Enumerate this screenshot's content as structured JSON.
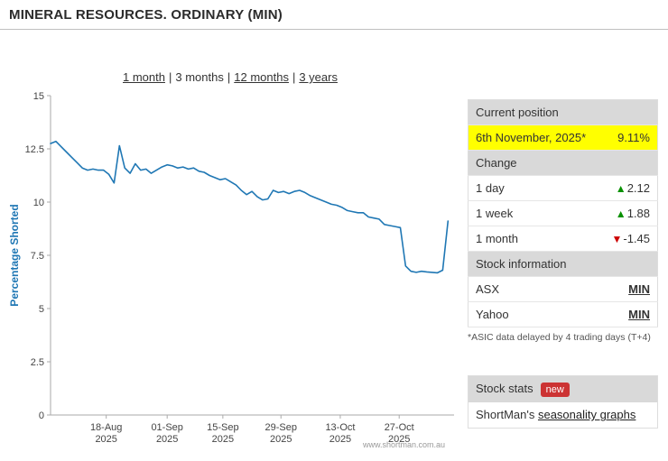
{
  "page": {
    "title": "MINERAL RESOURCES. ORDINARY (MIN)",
    "watermark": "www.shortman.com.au"
  },
  "nav": {
    "separator": "|",
    "items": [
      {
        "label": "1 month",
        "current": false
      },
      {
        "label": "3 months",
        "current": true
      },
      {
        "label": "12 months",
        "current": false
      },
      {
        "label": "3 years",
        "current": false
      }
    ]
  },
  "chart_data": {
    "type": "line",
    "title": "",
    "xlabel": "",
    "ylabel": "Percentage Shorted",
    "ylim": [
      0,
      15
    ],
    "yticks": [
      0,
      2.5,
      5,
      7.5,
      10,
      12.5,
      15
    ],
    "grid": false,
    "legend": "none",
    "x_end_frac": 0.985,
    "xticks": [
      {
        "frac": 0.138,
        "line1": "18-Aug",
        "line2": "2025"
      },
      {
        "frac": 0.289,
        "line1": "01-Sep",
        "line2": "2025"
      },
      {
        "frac": 0.427,
        "line1": "15-Sep",
        "line2": "2025"
      },
      {
        "frac": 0.571,
        "line1": "29-Sep",
        "line2": "2025"
      },
      {
        "frac": 0.718,
        "line1": "13-Oct",
        "line2": "2025"
      },
      {
        "frac": 0.864,
        "line1": "27-Oct",
        "line2": "2025"
      }
    ],
    "series": [
      {
        "name": "Percentage Shorted",
        "color": "#1f77b4",
        "values": [
          12.75,
          12.85,
          12.6,
          12.35,
          12.1,
          11.85,
          11.6,
          11.5,
          11.55,
          11.5,
          11.5,
          11.3,
          10.9,
          12.65,
          11.6,
          11.35,
          11.8,
          11.5,
          11.55,
          11.35,
          11.5,
          11.65,
          11.75,
          11.7,
          11.6,
          11.65,
          11.55,
          11.6,
          11.45,
          11.4,
          11.25,
          11.15,
          11.05,
          11.1,
          10.95,
          10.8,
          10.55,
          10.35,
          10.5,
          10.25,
          10.1,
          10.15,
          10.55,
          10.45,
          10.5,
          10.4,
          10.5,
          10.55,
          10.45,
          10.3,
          10.2,
          10.1,
          10.0,
          9.9,
          9.85,
          9.75,
          9.6,
          9.55,
          9.5,
          9.5,
          9.3,
          9.25,
          9.2,
          8.95,
          8.9,
          8.85,
          8.8,
          7.0,
          6.75,
          6.7,
          6.75,
          6.72,
          6.7,
          6.68,
          6.8,
          9.11
        ]
      }
    ]
  },
  "panel": {
    "current_position": {
      "header": "Current position",
      "date": "6th November, 2025*",
      "value": "9.11%",
      "highlight_color": "#ffff00"
    },
    "change": {
      "header": "Change",
      "rows": [
        {
          "label": "1 day",
          "arrow": "▲",
          "direction": "up",
          "value": "2.12"
        },
        {
          "label": "1 week",
          "arrow": "▲",
          "direction": "up",
          "value": "1.88"
        },
        {
          "label": "1 month",
          "arrow": "▼",
          "direction": "down",
          "value": "-1.45"
        }
      ]
    },
    "stock_information": {
      "header": "Stock information",
      "rows": [
        {
          "label": "ASX",
          "value": "MIN"
        },
        {
          "label": "Yahoo",
          "value": "MIN"
        }
      ]
    },
    "footnote": "*ASIC data delayed by 4 trading days (T+4)",
    "stock_stats": {
      "header": "Stock stats",
      "badge": "new",
      "link_prefix": "ShortMan's ",
      "link_label": "seasonality graphs"
    }
  },
  "colors": {
    "up": "#089000",
    "down": "#cc0000",
    "line": "#1f77b4",
    "highlight": "#ffff00",
    "badge_bg": "#cc3333",
    "header_bg": "#d9d9d9"
  }
}
